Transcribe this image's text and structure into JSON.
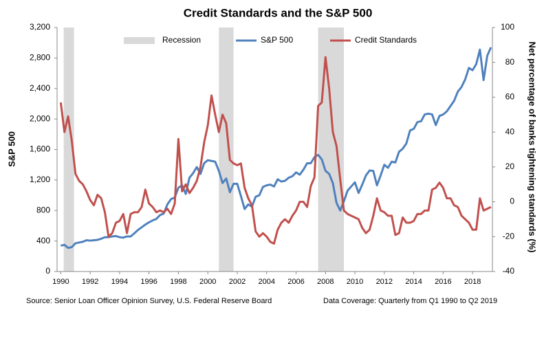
{
  "chart_data": {
    "type": "line",
    "title": "Credit Standards and the S&P 500",
    "ylabel": "S&P 500",
    "y2label": "Net percentage of banks tightening standards (%)",
    "source": "Source: Senior Loan Officer Opinion Survey, U.S. Federal Reserve Board",
    "coverage": "Data Coverage:  Quarterly from Q1 1990 to Q2 2019",
    "recession_name": "Recession",
    "recession_color": "#d9d9d9",
    "recessions": [
      {
        "start": 1990.2,
        "end": 1990.9
      },
      {
        "start": 2000.75,
        "end": 2001.75
      },
      {
        "start": 2007.5,
        "end": 2009.25
      }
    ],
    "xlim": [
      1989.75,
      2019.35
    ],
    "xticks": [
      1990,
      1992,
      1994,
      1996,
      1998,
      2000,
      2002,
      2004,
      2006,
      2008,
      2010,
      2012,
      2014,
      2016,
      2018
    ],
    "ylim": [
      0,
      3200
    ],
    "yticks": [
      0,
      400,
      800,
      {
        "value": 1200,
        "label": "1,200"
      },
      {
        "value": 1600,
        "label": "1,600"
      },
      {
        "value": 2000,
        "label": "2,000"
      },
      {
        "value": 2400,
        "label": "2,400"
      },
      {
        "value": 2800,
        "label": "2,800"
      },
      {
        "value": 3200,
        "label": "3,200"
      }
    ],
    "y2lim": [
      -40,
      100
    ],
    "y2ticks": [
      -40,
      -20,
      0,
      20,
      40,
      60,
      80,
      100
    ],
    "x": [
      1990,
      1990.25,
      1990.5,
      1990.75,
      1991,
      1991.25,
      1991.5,
      1991.75,
      1992,
      1992.25,
      1992.5,
      1992.75,
      1993,
      1993.25,
      1993.5,
      1993.75,
      1994,
      1994.25,
      1994.5,
      1994.75,
      1995,
      1995.25,
      1995.5,
      1995.75,
      1996,
      1996.25,
      1996.5,
      1996.75,
      1997,
      1997.25,
      1997.5,
      1997.75,
      1998,
      1998.25,
      1998.5,
      1998.75,
      1999,
      1999.25,
      1999.5,
      1999.75,
      2000,
      2000.25,
      2000.5,
      2000.75,
      2001,
      2001.25,
      2001.5,
      2001.75,
      2002,
      2002.25,
      2002.5,
      2002.75,
      2003,
      2003.25,
      2003.5,
      2003.75,
      2004,
      2004.25,
      2004.5,
      2004.75,
      2005,
      2005.25,
      2005.5,
      2005.75,
      2006,
      2006.25,
      2006.5,
      2006.75,
      2007,
      2007.25,
      2007.5,
      2007.75,
      2008,
      2008.25,
      2008.5,
      2008.75,
      2009,
      2009.25,
      2009.5,
      2009.75,
      2010,
      2010.25,
      2010.5,
      2010.75,
      2011,
      2011.25,
      2011.5,
      2011.75,
      2012,
      2012.25,
      2012.5,
      2012.75,
      2013,
      2013.25,
      2013.5,
      2013.75,
      2014,
      2014.25,
      2014.5,
      2014.75,
      2015,
      2015.25,
      2015.5,
      2015.75,
      2016,
      2016.25,
      2016.5,
      2016.75,
      2017,
      2017.25,
      2017.5,
      2017.75,
      2018,
      2018.25,
      2018.5,
      2018.75,
      2019,
      2019.25
    ],
    "series": [
      {
        "name": "S&P 500",
        "color": "#4f81bd",
        "values": [
          340,
          350,
          310,
          320,
          370,
          380,
          390,
          410,
          405,
          410,
          415,
          430,
          450,
          450,
          460,
          465,
          450,
          445,
          460,
          460,
          500,
          545,
          580,
          615,
          645,
          670,
          690,
          740,
          760,
          880,
          950,
          970,
          1100,
          1130,
          1017,
          1230,
          1290,
          1370,
          1280,
          1420,
          1460,
          1450,
          1440,
          1320,
          1160,
          1220,
          1040,
          1150,
          1150,
          990,
          820,
          880,
          850,
          980,
          1000,
          1110,
          1130,
          1140,
          1115,
          1210,
          1180,
          1190,
          1230,
          1250,
          1300,
          1270,
          1335,
          1420,
          1420,
          1500,
          1530,
          1470,
          1320,
          1280,
          1160,
          900,
          800,
          920,
          1060,
          1115,
          1170,
          1030,
          1140,
          1260,
          1325,
          1320,
          1130,
          1260,
          1400,
          1360,
          1440,
          1430,
          1570,
          1610,
          1680,
          1850,
          1870,
          1960,
          1970,
          2060,
          2070,
          2060,
          1920,
          2040,
          2060,
          2100,
          2170,
          2240,
          2360,
          2420,
          2520,
          2670,
          2640,
          2720,
          2910,
          2510,
          2830,
          2940
        ]
      },
      {
        "name": "Credit Standards",
        "color": "#c0504d",
        "axis": "y2",
        "values": [
          57,
          40,
          49,
          35,
          16,
          12,
          10,
          6,
          1,
          -2,
          4,
          2,
          -6,
          -20,
          -18,
          -12,
          -11,
          -7,
          -18,
          -7,
          -6,
          -6,
          -3,
          7,
          -1,
          -3,
          -6,
          -5,
          -6,
          -4,
          -7,
          -1,
          36,
          6,
          10,
          5,
          8,
          12,
          20,
          34,
          44,
          61,
          50,
          40,
          50,
          45,
          24,
          22,
          21,
          22,
          8,
          2,
          -2,
          -17,
          -20,
          -18,
          -20,
          -23,
          -24,
          -16,
          -12,
          -10,
          -12,
          -8,
          -5,
          0,
          0,
          -3,
          9,
          14,
          55,
          57,
          83,
          65,
          40,
          32,
          13,
          -5,
          -7,
          -8,
          -9,
          -10,
          -15,
          -18,
          -16,
          -8,
          2,
          -5,
          -6,
          -8,
          -8,
          -19,
          -18,
          -9,
          -12,
          -12,
          -11,
          -7,
          -7,
          -5,
          -5,
          7,
          8,
          11,
          8,
          2,
          2,
          -2,
          -3,
          -8,
          -10,
          -12,
          -16,
          -16,
          2,
          -5,
          -4,
          -3
        ]
      }
    ]
  }
}
